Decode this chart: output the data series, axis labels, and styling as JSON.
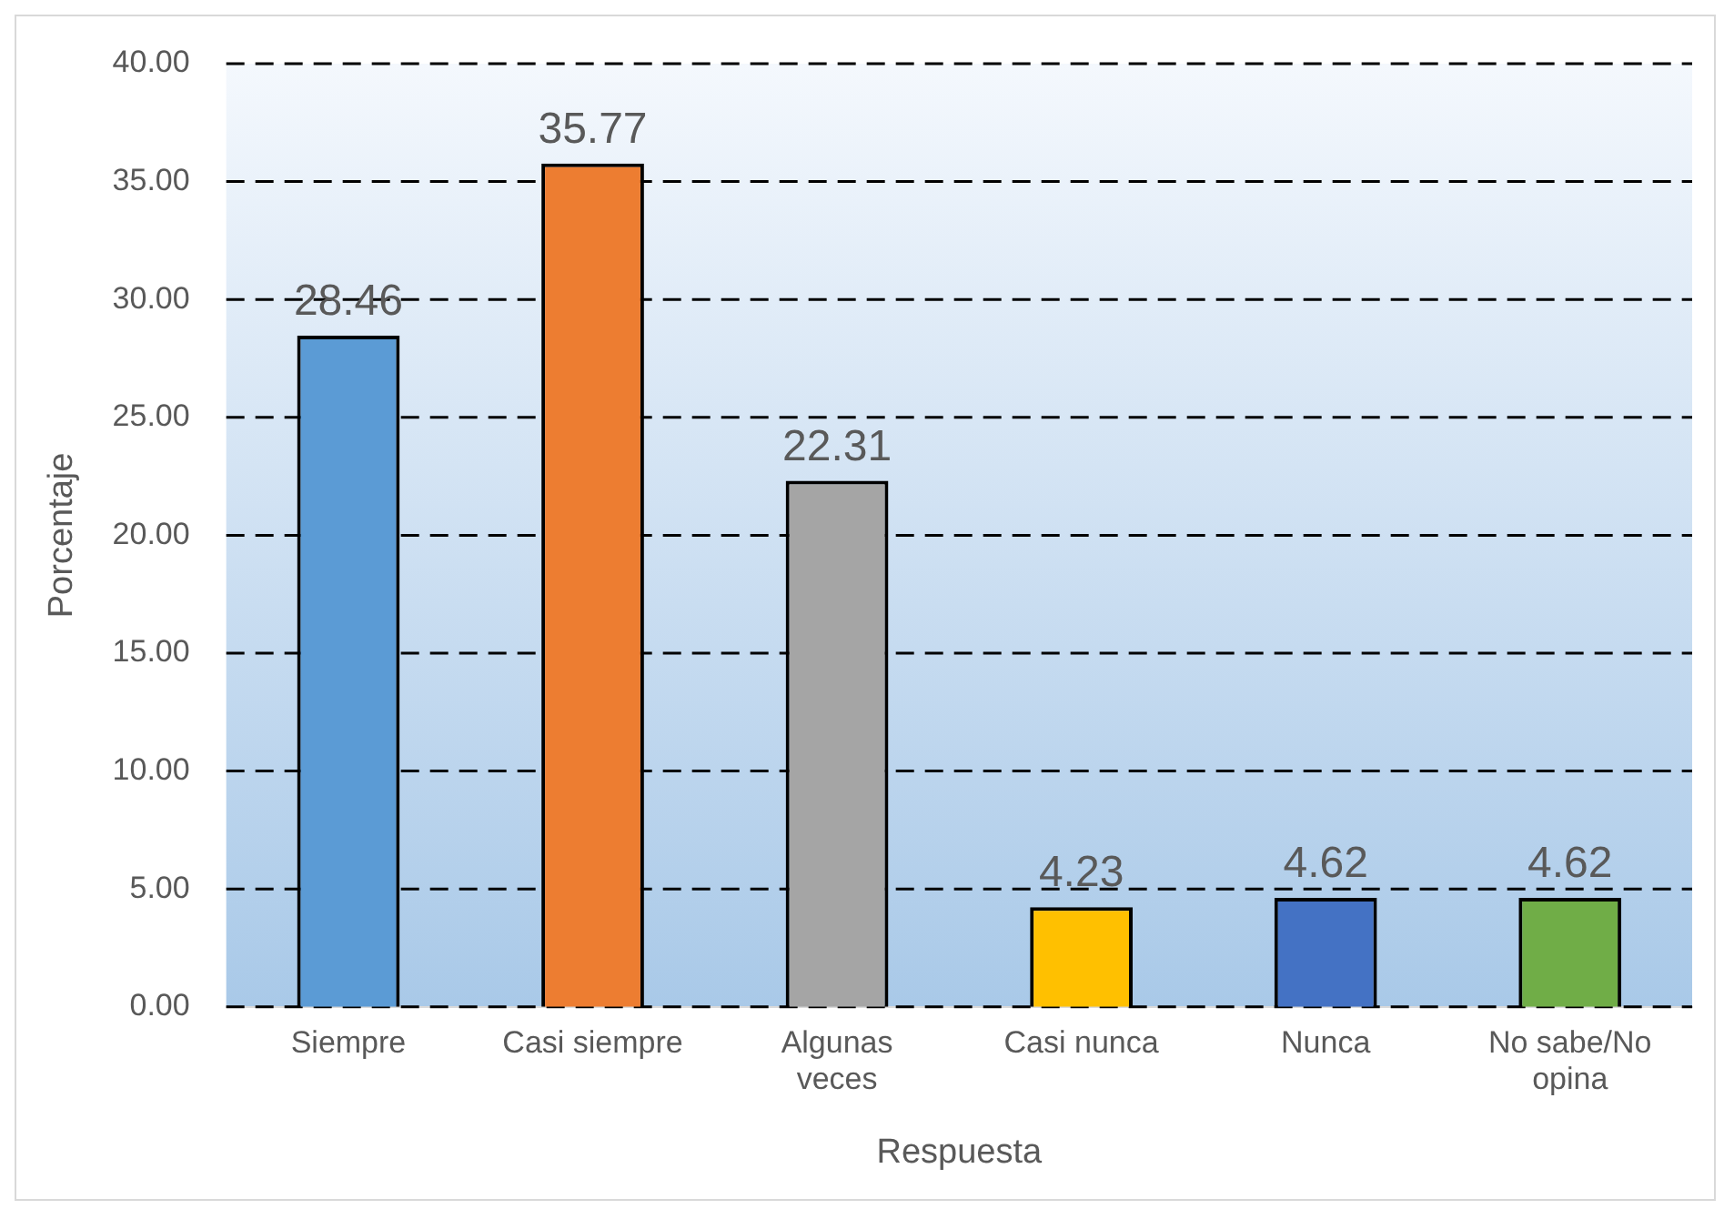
{
  "chart_data": {
    "type": "bar",
    "xlabel": "Respuesta",
    "ylabel": "Porcentaje",
    "categories": [
      "Siempre",
      "Casi siempre",
      "Algunas veces",
      "Casi nunca",
      "Nunca",
      "No sabe/No opina"
    ],
    "values": [
      28.46,
      35.77,
      22.31,
      4.23,
      4.62,
      4.62
    ],
    "colors": [
      "#5b9bd5",
      "#ed7d31",
      "#a5a5a5",
      "#ffc000",
      "#4472c4",
      "#70ad47"
    ],
    "ylim": [
      0,
      40
    ],
    "yticks": [
      {
        "value": 0,
        "label": "0.00"
      },
      {
        "value": 5,
        "label": "5.00"
      },
      {
        "value": 10,
        "label": "10.00"
      },
      {
        "value": 15,
        "label": "15.00"
      },
      {
        "value": 20,
        "label": "20.00"
      },
      {
        "value": 25,
        "label": "25.00"
      },
      {
        "value": 30,
        "label": "30.00"
      },
      {
        "value": 35,
        "label": "35.00"
      },
      {
        "value": 40,
        "label": "40.00"
      }
    ],
    "grid": "y",
    "legend": false,
    "data_labels": true
  }
}
